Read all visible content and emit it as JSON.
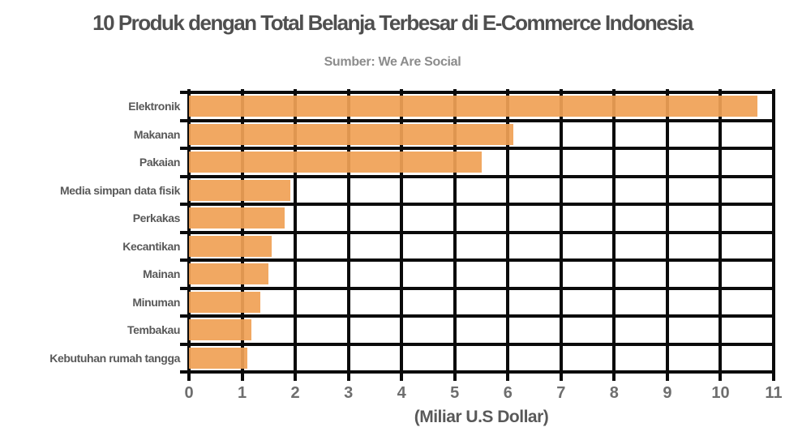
{
  "chart_data": {
    "type": "bar",
    "orientation": "horizontal",
    "title": "10 Produk dengan Total Belanja Terbesar di E-Commerce Indonesia",
    "subtitle": "Sumber: We Are Social",
    "xlabel": "(Miliar U.S Dollar)",
    "categories": [
      "Elektronik",
      "Makanan",
      "Pakaian",
      "Media simpan data fisik",
      "Perkakas",
      "Kecantikan",
      "Mainan",
      "Minuman",
      "Tembakau",
      "Kebutuhan rumah tangga"
    ],
    "values": [
      10.7,
      6.1,
      5.5,
      1.9,
      1.8,
      1.55,
      1.5,
      1.35,
      1.18,
      1.1
    ],
    "xlim": [
      0,
      11
    ],
    "xticks": [
      0,
      1,
      2,
      3,
      4,
      5,
      6,
      7,
      8,
      9,
      10,
      11
    ],
    "grid": true,
    "legend_position": "none",
    "colors": {
      "bar": "#F0A156",
      "grid": "#0A0A0A",
      "title": "#4F4F4F",
      "subtitle": "#8C8C8C",
      "category_label": "#595959",
      "tick_label": "#6E6E6E",
      "axis_label": "#595959",
      "background": "#FFFFFF"
    }
  }
}
